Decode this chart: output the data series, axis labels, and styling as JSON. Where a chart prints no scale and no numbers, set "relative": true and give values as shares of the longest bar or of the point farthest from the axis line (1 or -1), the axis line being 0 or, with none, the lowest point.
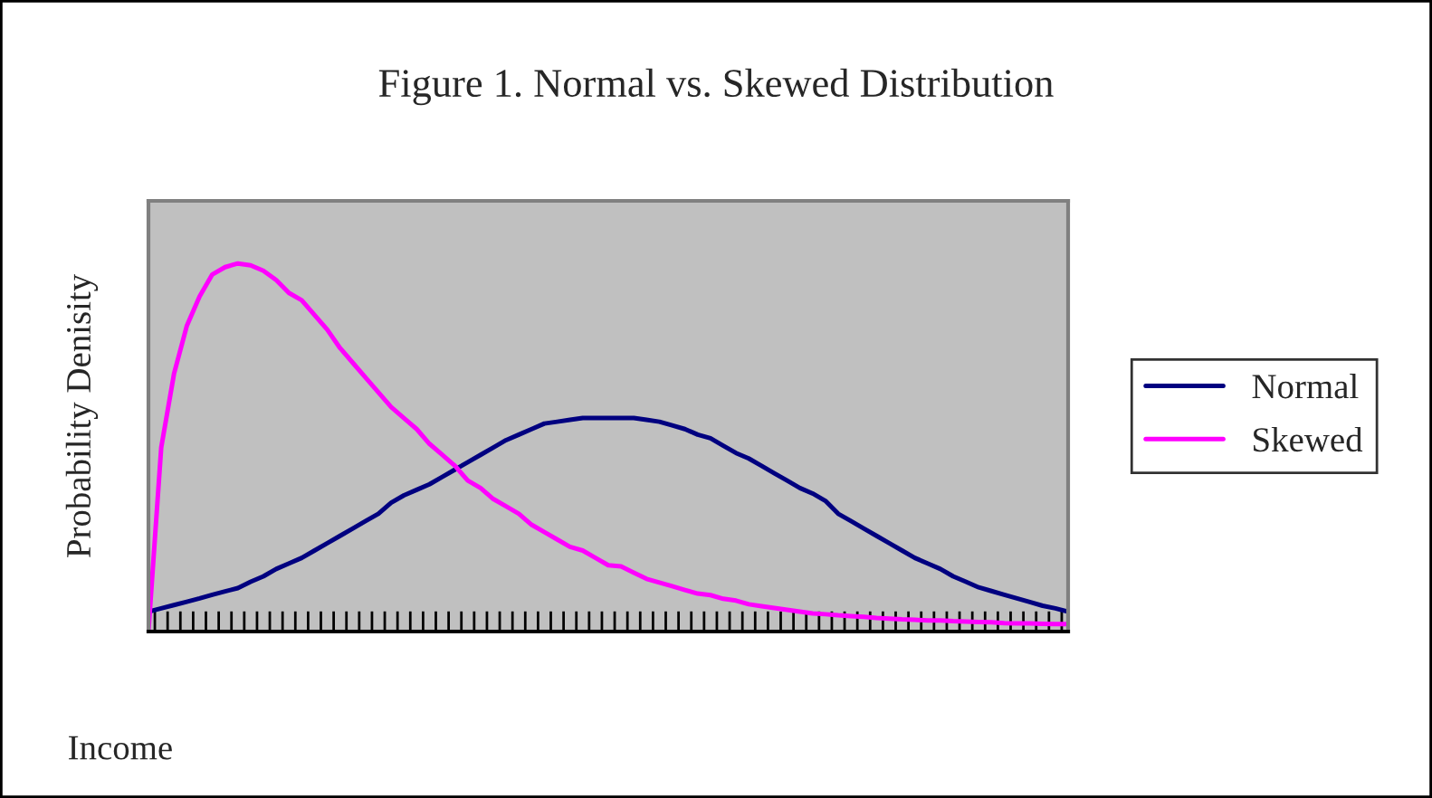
{
  "chart_data": {
    "type": "line",
    "title": "Figure 1. Normal vs. Skewed Distribution",
    "xlabel": "Income",
    "ylabel": "Probability Denisity",
    "relative": true,
    "legend": "right",
    "grid": false,
    "marker": "none",
    "line_style": "solid",
    "categories": [
      null,
      null,
      null,
      null,
      null,
      null,
      null,
      null,
      null,
      null,
      null,
      null,
      null,
      null,
      null,
      null,
      null,
      null,
      null,
      null,
      null,
      null,
      null,
      null,
      null,
      null,
      null,
      null,
      null,
      null,
      null,
      null,
      null,
      null,
      null,
      null,
      null,
      null,
      null,
      null,
      null,
      null,
      null,
      null,
      null,
      null,
      null,
      null,
      null,
      null,
      null,
      null,
      null,
      null,
      null,
      null,
      null,
      null,
      null,
      null,
      null,
      null,
      null,
      null,
      null,
      null,
      null,
      null,
      null,
      null,
      null,
      null,
      null
    ],
    "series": [
      {
        "name": "Normal",
        "color": "#000080",
        "values": [
          0.054,
          0.063,
          0.072,
          0.081,
          0.09,
          0.1,
          0.109,
          0.118,
          0.135,
          0.15,
          0.17,
          0.185,
          0.2,
          0.22,
          0.24,
          0.26,
          0.28,
          0.3,
          0.32,
          0.35,
          0.37,
          0.385,
          0.4,
          0.42,
          0.44,
          0.46,
          0.48,
          0.5,
          0.52,
          0.535,
          0.55,
          0.565,
          0.57,
          0.575,
          0.58,
          0.58,
          0.58,
          0.58,
          0.58,
          0.575,
          0.57,
          0.56,
          0.55,
          0.535,
          0.525,
          0.505,
          0.485,
          0.47,
          0.45,
          0.43,
          0.41,
          0.39,
          0.375,
          0.355,
          0.32,
          0.3,
          0.28,
          0.26,
          0.24,
          0.22,
          0.2,
          0.185,
          0.17,
          0.15,
          0.135,
          0.12,
          0.11,
          0.1,
          0.09,
          0.08,
          0.07,
          0.063,
          0.054
        ]
      },
      {
        "name": "Skewed",
        "color": "#ff00ff",
        "values": [
          0,
          0.5,
          0.7,
          0.83,
          0.91,
          0.97,
          0.99,
          1,
          0.995,
          0.98,
          0.955,
          0.92,
          0.9,
          0.86,
          0.82,
          0.77,
          0.73,
          0.69,
          0.65,
          0.61,
          0.58,
          0.55,
          0.51,
          0.48,
          0.45,
          0.41,
          0.39,
          0.36,
          0.34,
          0.32,
          0.29,
          0.27,
          0.25,
          0.23,
          0.22,
          0.2,
          0.18,
          0.177,
          0.16,
          0.143,
          0.133,
          0.123,
          0.113,
          0.103,
          0.099,
          0.089,
          0.084,
          0.074,
          0.069,
          0.064,
          0.059,
          0.054,
          0.049,
          0.047,
          0.044,
          0.042,
          0.04,
          0.037,
          0.035,
          0.033,
          0.032,
          0.03,
          0.03,
          0.028,
          0.027,
          0.026,
          0.025,
          0.023,
          0.022,
          0.022,
          0.021,
          0.02,
          0.02
        ]
      }
    ]
  }
}
